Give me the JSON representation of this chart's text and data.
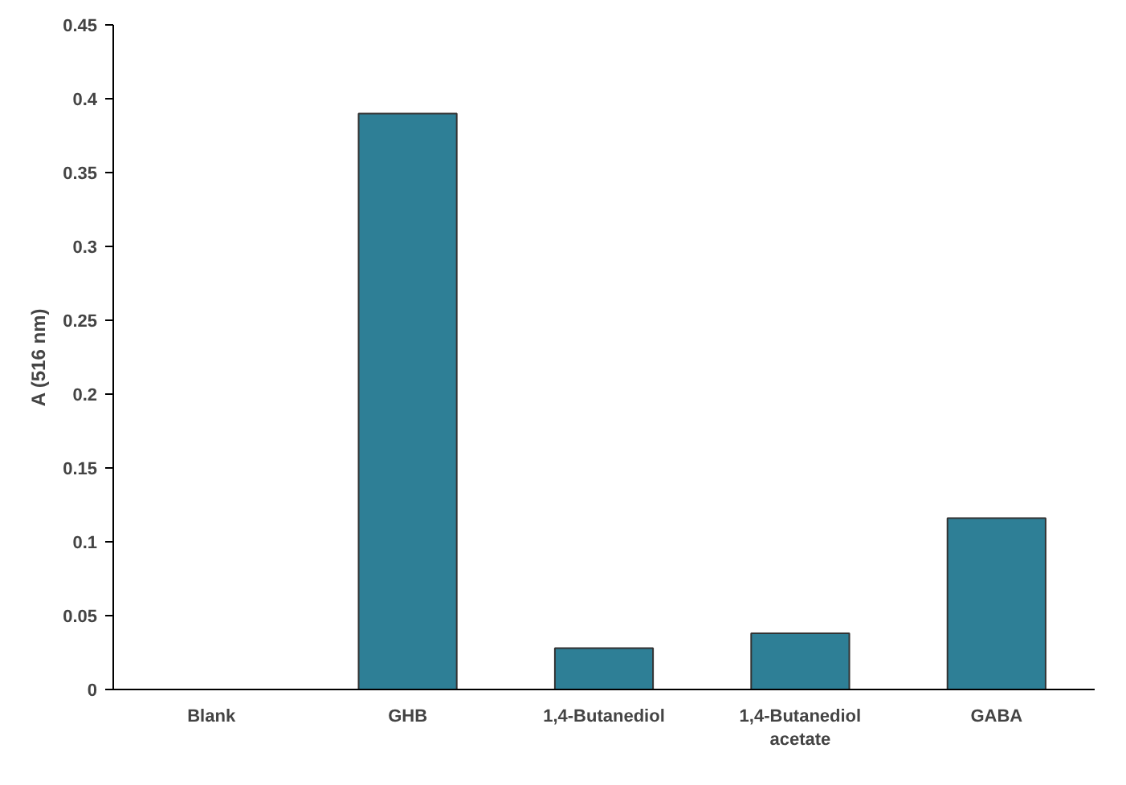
{
  "chart_data": {
    "type": "bar",
    "ylabel": "A (516 nm)",
    "categories": [
      "Blank",
      "GHB",
      "1,4-Butanediol",
      "1,4-Butanediol acetate",
      "GABA"
    ],
    "values": [
      0,
      0.39,
      0.028,
      0.038,
      0.116
    ],
    "color": "#2e7f96",
    "ylim": [
      0,
      0.45
    ],
    "yticks": [
      0,
      0.05,
      0.1,
      0.15,
      0.2,
      0.25,
      0.3,
      0.35,
      0.4,
      0.45
    ],
    "grid": false
  }
}
